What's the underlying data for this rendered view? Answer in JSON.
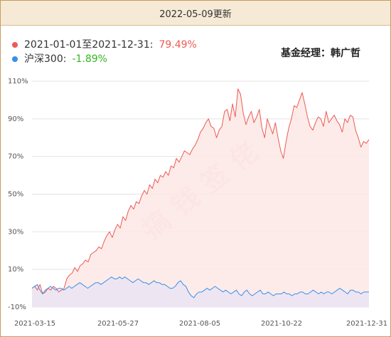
{
  "header": {
    "updated": "2022-05-09更新"
  },
  "legend": {
    "fund_label": "2021-01-01至2021-12-31:",
    "fund_value": "79.49%",
    "index_label": "沪深300:",
    "index_value": "-1.89%"
  },
  "manager": "基金经理：韩广哲",
  "watermark": "搞钱签佬",
  "colors": {
    "fund": "#ee5a52",
    "fund_fill": "#fde7e6",
    "index": "#3a8ee6",
    "index_fill": "#ebe6f3",
    "grid": "#e4e4e4",
    "header_bg": "#f6ead6"
  },
  "chart_data": {
    "type": "line",
    "x_ticks": [
      "2021-03-15",
      "2021-05-27",
      "2021-08-05",
      "2021-10-22",
      "2021-12-31"
    ],
    "y_ticks": [
      "110%",
      "90%",
      "70%",
      "50%",
      "30%",
      "10%",
      "-10%"
    ],
    "ylim": [
      -10,
      110
    ],
    "grid": true,
    "series": [
      {
        "name": "2021-01-01至2021-12-31",
        "values": [
          0,
          1,
          -1,
          2,
          -3,
          -2,
          0,
          -1,
          1,
          0,
          -2,
          -1,
          0,
          5,
          7,
          8,
          11,
          9,
          12,
          13,
          15,
          14,
          18,
          19,
          20,
          22,
          21,
          25,
          28,
          30,
          27,
          31,
          34,
          32,
          38,
          36,
          41,
          44,
          42,
          46,
          45,
          49,
          52,
          50,
          55,
          53,
          58,
          56,
          60,
          59,
          62,
          60,
          65,
          64,
          69,
          67,
          70,
          73,
          72,
          71,
          74,
          76,
          79,
          83,
          85,
          88,
          90,
          86,
          85,
          80,
          84,
          86,
          94,
          95,
          89,
          98,
          91,
          106,
          103,
          93,
          87,
          91,
          94,
          88,
          91,
          95,
          85,
          80,
          90,
          86,
          82,
          88,
          80,
          73,
          69,
          78,
          85,
          90,
          97,
          96,
          100,
          104,
          98,
          91,
          86,
          84,
          88,
          91,
          90,
          86,
          94,
          88,
          90,
          92,
          89,
          87,
          83,
          90,
          88,
          92,
          91,
          84,
          80,
          75,
          78,
          77,
          79
        ],
        "color": "#ee5a52"
      },
      {
        "name": "沪深300",
        "values": [
          0,
          1,
          2,
          -1,
          -3,
          -1,
          0,
          1,
          0,
          -1,
          0,
          0,
          -1,
          0,
          1,
          0,
          1,
          2,
          3,
          2,
          1,
          0,
          1,
          2,
          3,
          3,
          2,
          3,
          4,
          5,
          6,
          5,
          5,
          6,
          5,
          6,
          5,
          4,
          3,
          4,
          5,
          4,
          3,
          3,
          2,
          3,
          4,
          3,
          3,
          2,
          2,
          1,
          0,
          0,
          1,
          3,
          4,
          2,
          1,
          -2,
          -4,
          -5,
          -3,
          -2,
          -2,
          -1,
          0,
          -1,
          0,
          1,
          0,
          -1,
          -2,
          -1,
          -2,
          -3,
          -2,
          -1,
          -3,
          -4,
          -2,
          -1,
          -3,
          -4,
          -3,
          -2,
          -1,
          -3,
          -3,
          -2,
          -3,
          -4,
          -3,
          -3,
          -3,
          -2,
          -3,
          -3,
          -4,
          -3,
          -3,
          -2,
          -2,
          -3,
          -3,
          -2,
          -1,
          -2,
          -3,
          -2,
          -3,
          -2,
          -2,
          -3,
          -2,
          -1,
          0,
          -1,
          -2,
          -3,
          -1,
          -1,
          -2,
          -2,
          -3,
          -2,
          -2,
          -2
        ],
        "color": "#3a8ee6"
      }
    ]
  }
}
